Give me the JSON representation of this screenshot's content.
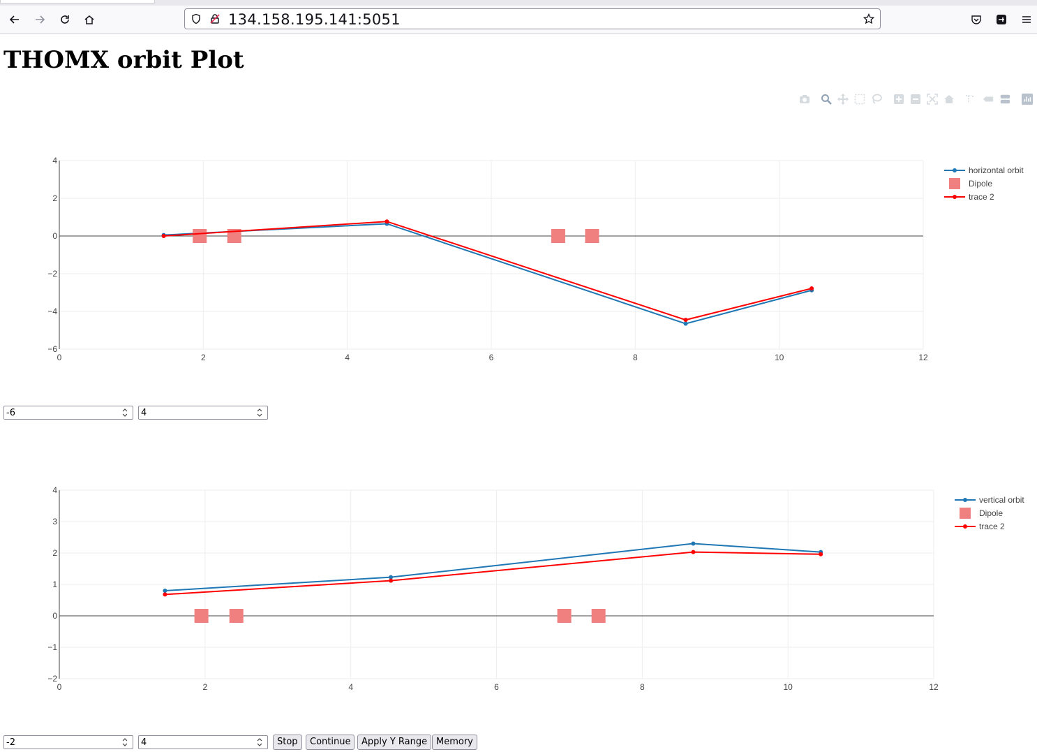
{
  "browser": {
    "url": "134.158.195.141:5051"
  },
  "page": {
    "title": "THOMX orbit Plot"
  },
  "modebar": {
    "icons": [
      "camera-icon",
      "zoom-icon",
      "pan-icon",
      "box-select-icon",
      "lasso-icon",
      "zoom-in-icon",
      "zoom-out-icon",
      "autoscale-icon",
      "reset-axes-icon",
      "spike-lines-icon",
      "hover-closest-icon",
      "hover-compare-icon",
      "plotly-logo-icon"
    ]
  },
  "controls_top": {
    "ymin": "-6",
    "ymax": "4"
  },
  "controls_bottom": {
    "ymin": "-2",
    "ymax": "4",
    "stop_label": "Stop",
    "continue_label": "Continue",
    "apply_label": "Apply Y Range",
    "memory_label": "Memory"
  },
  "colors": {
    "orbit": "#1f77b4",
    "trace2": "#ff0000",
    "dipole": "#f08080",
    "grid": "#eeeeee"
  },
  "chart_data": [
    {
      "type": "line",
      "xlim": [
        0,
        12
      ],
      "ylim": [
        -6,
        4
      ],
      "xticks": [
        "0",
        "2",
        "4",
        "6",
        "8",
        "10",
        "12"
      ],
      "yticks": [
        "4",
        "2",
        "0",
        "−2",
        "−4",
        "−6"
      ],
      "grid": true,
      "legend_position": "top-right",
      "series": [
        {
          "name": "horizontal orbit",
          "mode": "lines+markers",
          "x": [
            1.45,
            4.55,
            8.7,
            10.45
          ],
          "y": [
            0.05,
            0.65,
            -4.65,
            -2.88
          ]
        },
        {
          "name": "Dipole",
          "mode": "markers",
          "x": [
            1.95,
            2.43,
            6.93,
            7.4
          ],
          "y": [
            0,
            0,
            0,
            0
          ]
        },
        {
          "name": "trace 2",
          "mode": "lines+markers",
          "x": [
            1.45,
            4.55,
            8.7,
            10.45
          ],
          "y": [
            0.0,
            0.77,
            -4.45,
            -2.78
          ]
        }
      ]
    },
    {
      "type": "line",
      "xlim": [
        0,
        12
      ],
      "ylim": [
        -2,
        4
      ],
      "xticks": [
        "0",
        "2",
        "4",
        "6",
        "8",
        "10",
        "12"
      ],
      "yticks": [
        "4",
        "3",
        "2",
        "1",
        "0",
        "−1",
        "−2"
      ],
      "grid": true,
      "legend_position": "top-right",
      "series": [
        {
          "name": "vertical orbit",
          "mode": "lines+markers",
          "x": [
            1.45,
            4.55,
            8.7,
            10.45
          ],
          "y": [
            0.8,
            1.23,
            2.3,
            2.03
          ]
        },
        {
          "name": "Dipole",
          "mode": "markers",
          "x": [
            1.95,
            2.43,
            6.93,
            7.4
          ],
          "y": [
            0,
            0,
            0,
            0
          ]
        },
        {
          "name": "trace 2",
          "mode": "lines+markers",
          "x": [
            1.45,
            4.55,
            8.7,
            10.45
          ],
          "y": [
            0.68,
            1.12,
            2.03,
            1.96
          ]
        }
      ]
    }
  ]
}
